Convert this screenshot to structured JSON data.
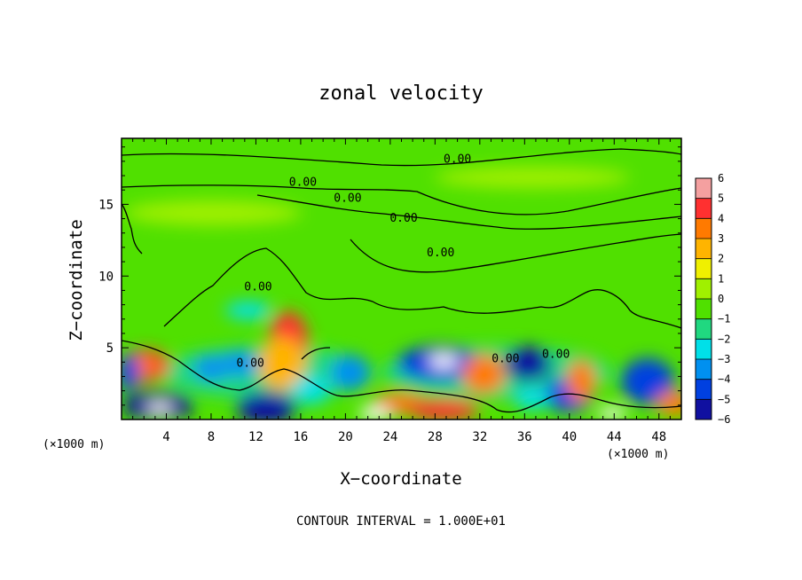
{
  "chart_data": {
    "type": "heatmap",
    "title": "zonal velocity",
    "xlabel": "X−coordinate",
    "ylabel": "Z−coordinate",
    "x_unit": "(×1000 m)",
    "z_unit": "(×1000 m)",
    "xlim": [
      0,
      50
    ],
    "zlim": [
      0,
      19.6
    ],
    "x_ticks": [
      4,
      8,
      12,
      16,
      20,
      24,
      28,
      32,
      36,
      40,
      44,
      48
    ],
    "z_ticks": [
      5,
      10,
      15
    ],
    "colorbar": {
      "ticks": [
        6,
        5,
        4,
        3,
        2,
        1,
        0,
        -1,
        -2,
        -3,
        -4,
        -5,
        -6
      ],
      "colors": [
        "#f4a0a0",
        "#ff3030",
        "#ff7a00",
        "#ffb400",
        "#f0f000",
        "#a0f000",
        "#50e000",
        "#20d880",
        "#00e0e8",
        "#0090f0",
        "#0040e0",
        "#1010a0",
        "#7000a0"
      ]
    },
    "contour_level": 0.0,
    "contour_labels": [
      {
        "x": 30,
        "z": 18.2,
        "text": "0.00"
      },
      {
        "x": 16.2,
        "z": 16.6,
        "text": "0.00"
      },
      {
        "x": 20.2,
        "z": 15.5,
        "text": "0.00"
      },
      {
        "x": 25.2,
        "z": 14.1,
        "text": "0.00"
      },
      {
        "x": 28.5,
        "z": 11.7,
        "text": "0.00"
      },
      {
        "x": 12.2,
        "z": 9.3,
        "text": "0.00"
      },
      {
        "x": 11.5,
        "z": 4.0,
        "text": "0.00"
      },
      {
        "x": 34.3,
        "z": 4.3,
        "text": "0.00"
      },
      {
        "x": 38.8,
        "z": 4.6,
        "text": "0.00"
      }
    ],
    "footnote": "CONTOUR INTERVAL = 1.000E+01",
    "grid": false
  }
}
